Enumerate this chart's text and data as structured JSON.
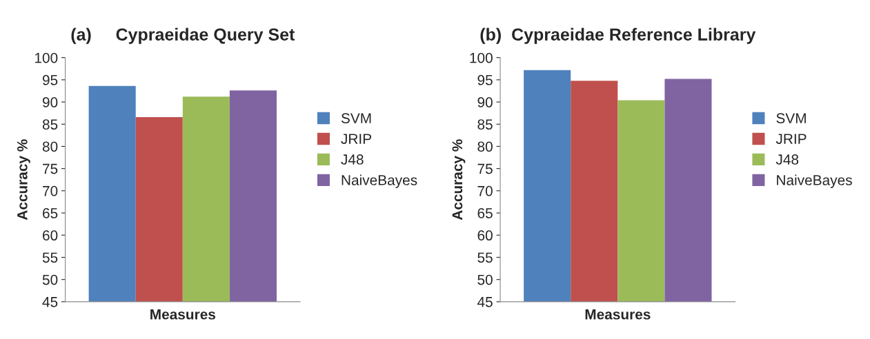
{
  "chart_data": [
    {
      "type": "bar",
      "title": "(a)     Cypraeidae Query Set",
      "xlabel": "Measures",
      "ylabel": "Accuracy %",
      "categories": [
        null
      ],
      "series": [
        {
          "name": "SVM",
          "color": "#4f81bd",
          "values": [
            93.6
          ]
        },
        {
          "name": "JRIP",
          "color": "#c0504d",
          "values": [
            86.6
          ]
        },
        {
          "name": "J48",
          "color": "#9bbb59",
          "values": [
            91.2
          ]
        },
        {
          "name": "NaiveBayes",
          "color": "#8064a2",
          "values": [
            92.6
          ]
        }
      ],
      "ylim": [
        45,
        100
      ],
      "yticks": [
        45,
        50,
        55,
        60,
        65,
        70,
        75,
        80,
        85,
        90,
        95,
        100
      ],
      "grid": false,
      "legend": "right"
    },
    {
      "type": "bar",
      "title": "(b)  Cypraeidae Reference Library",
      "xlabel": "Measures",
      "ylabel": "Accuracy %",
      "categories": [
        null
      ],
      "series": [
        {
          "name": "SVM",
          "color": "#4f81bd",
          "values": [
            97.2
          ]
        },
        {
          "name": "JRIP",
          "color": "#c0504d",
          "values": [
            94.8
          ]
        },
        {
          "name": "J48",
          "color": "#9bbb59",
          "values": [
            90.4
          ]
        },
        {
          "name": "NaiveBayes",
          "color": "#8064a2",
          "values": [
            95.2
          ]
        }
      ],
      "ylim": [
        45,
        100
      ],
      "yticks": [
        45,
        50,
        55,
        60,
        65,
        70,
        75,
        80,
        85,
        90,
        95,
        100
      ],
      "grid": false,
      "legend": "right"
    }
  ]
}
